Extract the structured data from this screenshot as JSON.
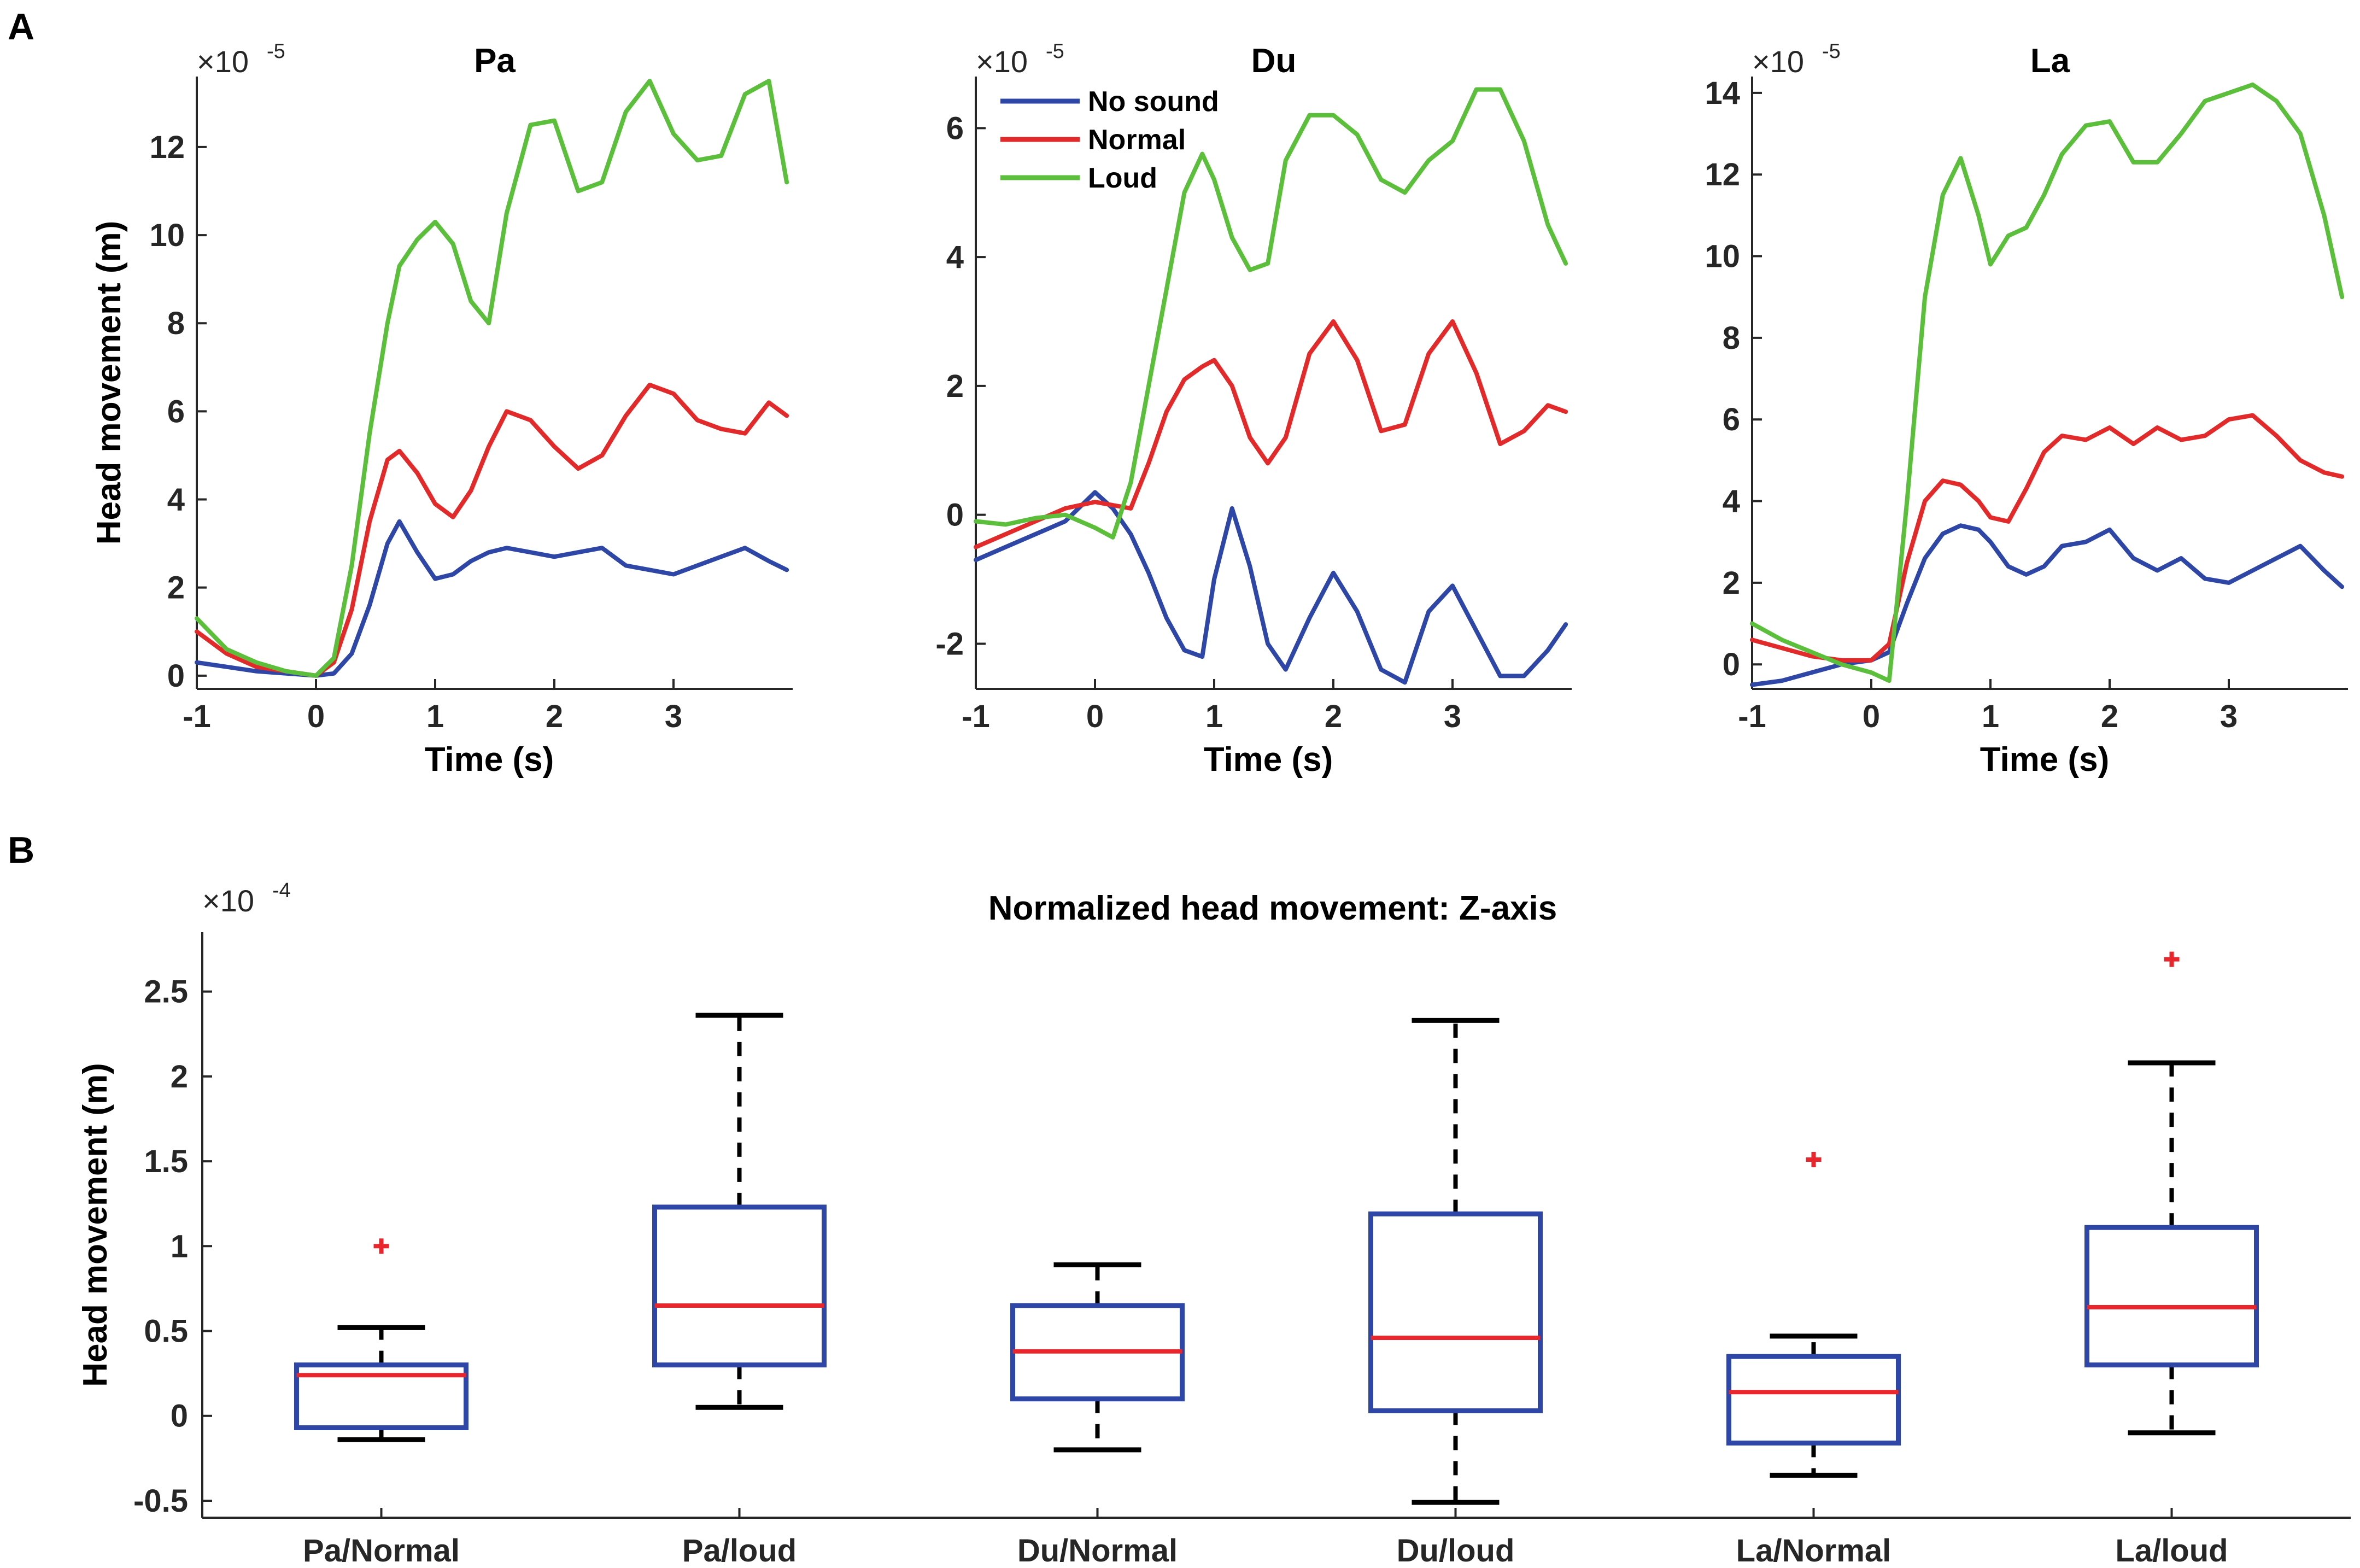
{
  "panels": {
    "a": "A",
    "b": "B"
  },
  "colors": {
    "no_sound": "#2e46a6",
    "normal": "#e32a2a",
    "loud": "#5cbf3c",
    "box": "#2e46a6",
    "median": "#e8262b",
    "outlier": "#e8262b"
  },
  "chart_data": [
    {
      "type": "line",
      "title": "Pa",
      "xlabel": "Time (s)",
      "ylabel": "Head movement (m)",
      "exponent_base": "×10",
      "exponent_power": "-5",
      "xlim": [
        -1,
        4
      ],
      "ylim": [
        -0.3,
        13.6
      ],
      "xticks": [
        "-1",
        "0",
        "1",
        "2",
        "3"
      ],
      "yticks": [
        "0",
        "2",
        "4",
        "6",
        "8",
        "10",
        "12"
      ],
      "x": [
        -1.0,
        -0.75,
        -0.5,
        -0.25,
        0.0,
        0.15,
        0.3,
        0.45,
        0.6,
        0.7,
        0.85,
        1.0,
        1.15,
        1.3,
        1.45,
        1.6,
        1.8,
        2.0,
        2.2,
        2.4,
        2.6,
        2.8,
        3.0,
        3.2,
        3.4,
        3.6,
        3.8,
        3.95
      ],
      "series": [
        {
          "name": "No sound",
          "values": [
            0.3,
            0.2,
            0.1,
            0.05,
            0.0,
            0.05,
            0.5,
            1.6,
            3.0,
            3.5,
            2.8,
            2.2,
            2.3,
            2.6,
            2.8,
            2.9,
            2.8,
            2.7,
            2.8,
            2.9,
            2.5,
            2.4,
            2.3,
            2.5,
            2.7,
            2.9,
            2.6,
            2.4
          ]
        },
        {
          "name": "Normal",
          "values": [
            1.0,
            0.5,
            0.2,
            0.1,
            0.0,
            0.3,
            1.5,
            3.5,
            4.9,
            5.1,
            4.6,
            3.9,
            3.6,
            4.2,
            5.2,
            6.0,
            5.8,
            5.2,
            4.7,
            5.0,
            5.9,
            6.6,
            6.4,
            5.8,
            5.6,
            5.5,
            6.2,
            5.9
          ]
        },
        {
          "name": "Loud",
          "values": [
            1.3,
            0.6,
            0.3,
            0.1,
            0.0,
            0.4,
            2.5,
            5.5,
            8.0,
            9.3,
            9.9,
            10.3,
            9.8,
            8.5,
            8.0,
            10.5,
            12.5,
            12.6,
            11.0,
            11.2,
            12.8,
            13.5,
            12.3,
            11.7,
            11.8,
            13.2,
            13.5,
            11.2
          ]
        }
      ]
    },
    {
      "type": "line",
      "title": "Du",
      "xlabel": "Time (s)",
      "ylabel": "",
      "exponent_base": "×10",
      "exponent_power": "-5",
      "xlim": [
        -1,
        4
      ],
      "ylim": [
        -2.7,
        6.8
      ],
      "xticks": [
        "-1",
        "0",
        "1",
        "2",
        "3"
      ],
      "yticks": [
        "-2",
        "0",
        "2",
        "4",
        "6"
      ],
      "legend": [
        "No sound",
        "Normal",
        "Loud"
      ],
      "x": [
        -1.0,
        -0.75,
        -0.5,
        -0.25,
        0.0,
        0.15,
        0.3,
        0.45,
        0.6,
        0.75,
        0.9,
        1.0,
        1.15,
        1.3,
        1.45,
        1.6,
        1.8,
        2.0,
        2.2,
        2.4,
        2.6,
        2.8,
        3.0,
        3.2,
        3.4,
        3.6,
        3.8,
        3.95
      ],
      "series": [
        {
          "name": "No sound",
          "values": [
            -0.7,
            -0.5,
            -0.3,
            -0.1,
            0.35,
            0.1,
            -0.3,
            -0.9,
            -1.6,
            -2.1,
            -2.2,
            -1.0,
            0.1,
            -0.8,
            -2.0,
            -2.4,
            -1.6,
            -0.9,
            -1.5,
            -2.4,
            -2.6,
            -1.5,
            -1.1,
            -1.8,
            -2.5,
            -2.5,
            -2.1,
            -1.7
          ]
        },
        {
          "name": "Normal",
          "values": [
            -0.5,
            -0.3,
            -0.1,
            0.1,
            0.2,
            0.15,
            0.1,
            0.8,
            1.6,
            2.1,
            2.3,
            2.4,
            2.0,
            1.2,
            0.8,
            1.2,
            2.5,
            3.0,
            2.4,
            1.3,
            1.4,
            2.5,
            3.0,
            2.2,
            1.1,
            1.3,
            1.7,
            1.6
          ]
        },
        {
          "name": "Loud",
          "values": [
            -0.1,
            -0.15,
            -0.05,
            0.0,
            -0.2,
            -0.35,
            0.5,
            2.0,
            3.5,
            5.0,
            5.6,
            5.2,
            4.3,
            3.8,
            3.9,
            5.5,
            6.2,
            6.2,
            5.9,
            5.2,
            5.0,
            5.5,
            5.8,
            6.6,
            6.6,
            5.8,
            4.5,
            3.9
          ]
        }
      ]
    },
    {
      "type": "line",
      "title": "La",
      "xlabel": "Time (s)",
      "ylabel": "",
      "exponent_base": "×10",
      "exponent_power": "-5",
      "xlim": [
        -1,
        4
      ],
      "ylim": [
        -0.6,
        14.4
      ],
      "xticks": [
        "-1",
        "0",
        "1",
        "2",
        "3"
      ],
      "yticks": [
        "0",
        "2",
        "4",
        "6",
        "8",
        "10",
        "12",
        "14"
      ],
      "x": [
        -1.0,
        -0.75,
        -0.5,
        -0.25,
        0.0,
        0.15,
        0.3,
        0.45,
        0.6,
        0.75,
        0.9,
        1.0,
        1.15,
        1.3,
        1.45,
        1.6,
        1.8,
        2.0,
        2.2,
        2.4,
        2.6,
        2.8,
        3.0,
        3.2,
        3.4,
        3.6,
        3.8,
        3.95
      ],
      "series": [
        {
          "name": "No sound",
          "values": [
            -0.5,
            -0.4,
            -0.2,
            0.0,
            0.1,
            0.3,
            1.5,
            2.6,
            3.2,
            3.4,
            3.3,
            3.0,
            2.4,
            2.2,
            2.4,
            2.9,
            3.0,
            3.3,
            2.6,
            2.3,
            2.6,
            2.1,
            2.0,
            2.3,
            2.6,
            2.9,
            2.3,
            1.9
          ]
        },
        {
          "name": "Normal",
          "values": [
            0.6,
            0.4,
            0.2,
            0.1,
            0.1,
            0.5,
            2.5,
            4.0,
            4.5,
            4.4,
            4.0,
            3.6,
            3.5,
            4.3,
            5.2,
            5.6,
            5.5,
            5.8,
            5.4,
            5.8,
            5.5,
            5.6,
            6.0,
            6.1,
            5.6,
            5.0,
            4.7,
            4.6
          ]
        },
        {
          "name": "Loud",
          "values": [
            1.0,
            0.6,
            0.3,
            0.0,
            -0.2,
            -0.4,
            4.0,
            9.0,
            11.5,
            12.4,
            11.0,
            9.8,
            10.5,
            10.7,
            11.5,
            12.5,
            13.2,
            13.3,
            12.3,
            12.3,
            13.0,
            13.8,
            14.0,
            14.2,
            13.8,
            13.0,
            11.0,
            9.0
          ]
        }
      ]
    },
    {
      "type": "box",
      "title": "Normalized head movement: Z-axis",
      "xlabel": "",
      "ylabel": "Head movement (m)",
      "exponent_base": "×10",
      "exponent_power": "-4",
      "ylim": [
        -0.6,
        2.85
      ],
      "yticks": [
        "-0.5",
        "0",
        "0.5",
        "1",
        "1.5",
        "2",
        "2.5"
      ],
      "categories": [
        "Pa/Normal",
        "Pa/loud",
        "Du/Normal",
        "Du/loud",
        "La/Normal",
        "La/loud"
      ],
      "boxes": [
        {
          "whisker_low": -0.14,
          "q1": -0.07,
          "median": 0.24,
          "q3": 0.3,
          "whisker_high": 0.52,
          "outliers": [
            1.0
          ]
        },
        {
          "whisker_low": 0.05,
          "q1": 0.3,
          "median": 0.65,
          "q3": 1.23,
          "whisker_high": 2.36,
          "outliers": []
        },
        {
          "whisker_low": -0.2,
          "q1": 0.1,
          "median": 0.38,
          "q3": 0.65,
          "whisker_high": 0.89,
          "outliers": []
        },
        {
          "whisker_low": -0.51,
          "q1": 0.03,
          "median": 0.46,
          "q3": 1.19,
          "whisker_high": 2.33,
          "outliers": []
        },
        {
          "whisker_low": -0.35,
          "q1": -0.16,
          "median": 0.14,
          "q3": 0.35,
          "whisker_high": 0.47,
          "outliers": [
            1.51
          ]
        },
        {
          "whisker_low": -0.1,
          "q1": 0.3,
          "median": 0.64,
          "q3": 1.11,
          "whisker_high": 2.08,
          "outliers": [
            2.69
          ]
        }
      ]
    }
  ]
}
